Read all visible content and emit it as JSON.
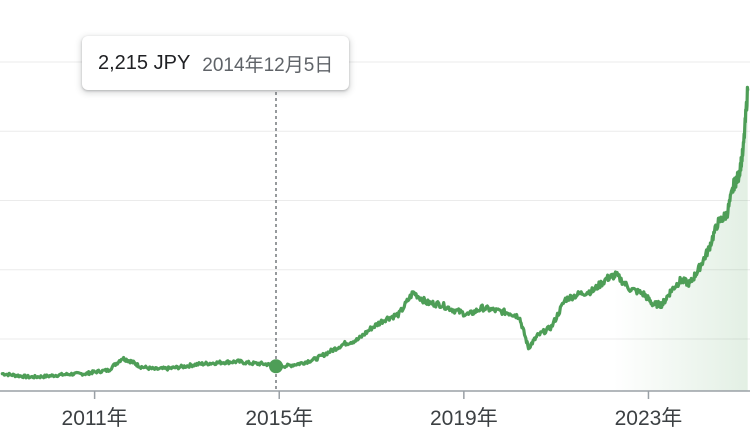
{
  "tooltip": {
    "price": "2,215 JPY",
    "date": "2014年12月5日"
  },
  "colors": {
    "line": "#4e9e57",
    "grid": "#ebebeb",
    "axis": "#9aa0a6",
    "tick_text": "#3c4043",
    "crosshair": "#5f6368"
  },
  "chart_data": {
    "type": "line",
    "title": "",
    "xlabel": "",
    "ylabel": "",
    "currency": "JPY",
    "x_ticks": [
      "2011年",
      "2015年",
      "2019年",
      "2023年"
    ],
    "x_tick_years": [
      2011,
      2015,
      2019,
      2023
    ],
    "xlim": [
      2008.95,
      2025.2
    ],
    "ylim": [
      1500,
      11000
    ],
    "y_gridlines": [
      3000,
      5000,
      7000,
      9000,
      11000
    ],
    "y_tick_labels_shown": false,
    "grid": true,
    "highlight": {
      "x": 2014.93,
      "y": 2215,
      "label": "2,215 JPY",
      "date": "2014年12月5日"
    },
    "series": [
      {
        "x": [
          2009.0,
          2009.3,
          2009.6,
          2009.9,
          2010.2,
          2010.5,
          2010.8,
          2011.0,
          2011.3,
          2011.6,
          2011.8,
          2012.0,
          2012.3,
          2012.6,
          2012.9,
          2013.2,
          2013.5,
          2013.8,
          2014.1,
          2014.4,
          2014.7,
          2014.93,
          2015.2,
          2015.5,
          2015.8,
          2016.1,
          2016.4,
          2016.7,
          2017.0,
          2017.3,
          2017.6,
          2017.9,
          2018.2,
          2018.5,
          2018.8,
          2019.1,
          2019.4,
          2019.7,
          2020.0,
          2020.2,
          2020.4,
          2020.6,
          2020.9,
          2021.2,
          2021.5,
          2021.8,
          2022.1,
          2022.3,
          2022.6,
          2022.9,
          2023.1,
          2023.3,
          2023.5,
          2023.7,
          2023.9,
          2024.1,
          2024.3,
          2024.5,
          2024.7,
          2024.85,
          2024.95,
          2025.05,
          2025.15
        ],
        "values": [
          2000,
          1950,
          1900,
          1920,
          1960,
          1990,
          2000,
          2050,
          2100,
          2450,
          2350,
          2200,
          2130,
          2150,
          2200,
          2270,
          2300,
          2330,
          2350,
          2300,
          2280,
          2215,
          2230,
          2310,
          2430,
          2640,
          2860,
          2980,
          3320,
          3580,
          3720,
          4350,
          4050,
          4000,
          3830,
          3700,
          3900,
          3820,
          3750,
          3650,
          2750,
          3100,
          3350,
          4150,
          4300,
          4400,
          4750,
          4850,
          4450,
          4300,
          4000,
          4000,
          4420,
          4700,
          4600,
          5050,
          5580,
          6350,
          6600,
          7450,
          7700,
          8400,
          10200
        ]
      }
    ]
  }
}
